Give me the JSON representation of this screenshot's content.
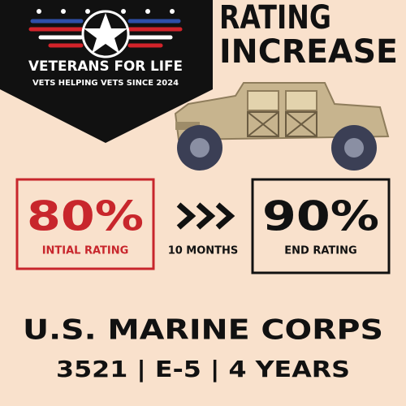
{
  "logo": {
    "title": "VETERANS FOR LIFE",
    "tagline": "VETS HELPING VETS SINCE 2024"
  },
  "headline": {
    "lines": [
      "RATING",
      "INCREASE"
    ]
  },
  "initial": {
    "value": "80%",
    "label": "INTIAL RATING"
  },
  "duration": "10 MONTHS",
  "end": {
    "value": "90%",
    "label": "END RATING"
  },
  "branch": "U.S. MARINE CORPS",
  "details": "3521 | E-5 | 4 YEARS"
}
